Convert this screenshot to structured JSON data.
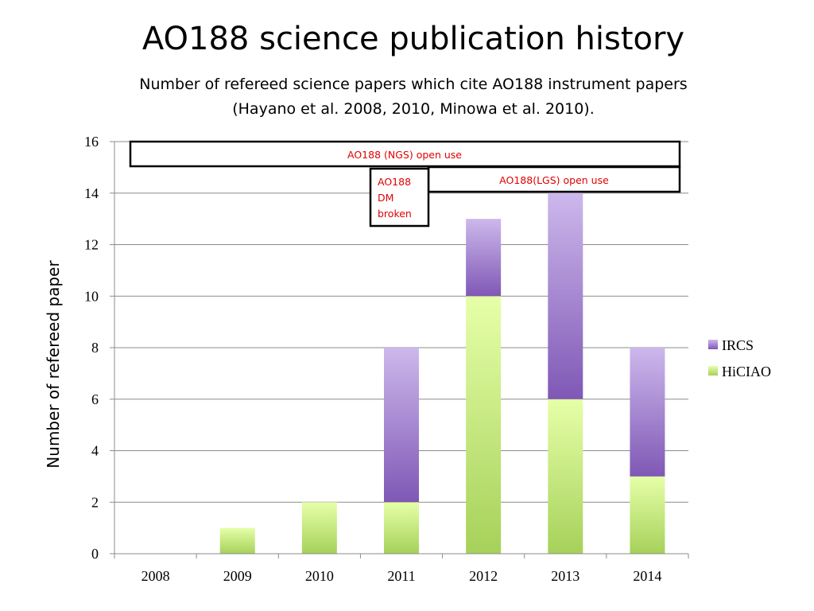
{
  "header": {
    "title": "AO188 science publication history",
    "subtitle_line1": "Number of refereed science papers which cite AO188 instrument papers",
    "subtitle_line2": "(Hayano et al. 2008, 2010, Minowa et al. 2010)."
  },
  "chart_data": {
    "type": "bar",
    "stacked": true,
    "categories": [
      "2008",
      "2009",
      "2010",
      "2011",
      "2012",
      "2013",
      "2014"
    ],
    "series": [
      {
        "name": "HiCIAO",
        "values": [
          0,
          1,
          2,
          2,
          10,
          6,
          3
        ],
        "color": "#a6d15a"
      },
      {
        "name": "IRCS",
        "values": [
          0,
          0,
          0,
          6,
          3,
          8,
          5
        ],
        "color": "#8e6bbf"
      }
    ],
    "ylabel": "Number of refereed paper",
    "xlabel": "",
    "ylim": [
      0,
      16
    ],
    "yticks": [
      "0",
      "2",
      "4",
      "6",
      "8",
      "10",
      "12",
      "14",
      "16"
    ],
    "grid": true,
    "legend_position": "right",
    "annotations": [
      {
        "text": "AO188 (NGS) open use"
      },
      {
        "text": "AO188(LGS) open use"
      },
      {
        "text": "AO188 DM broken",
        "lines": [
          "AO188",
          "DM",
          "broken"
        ]
      }
    ]
  }
}
